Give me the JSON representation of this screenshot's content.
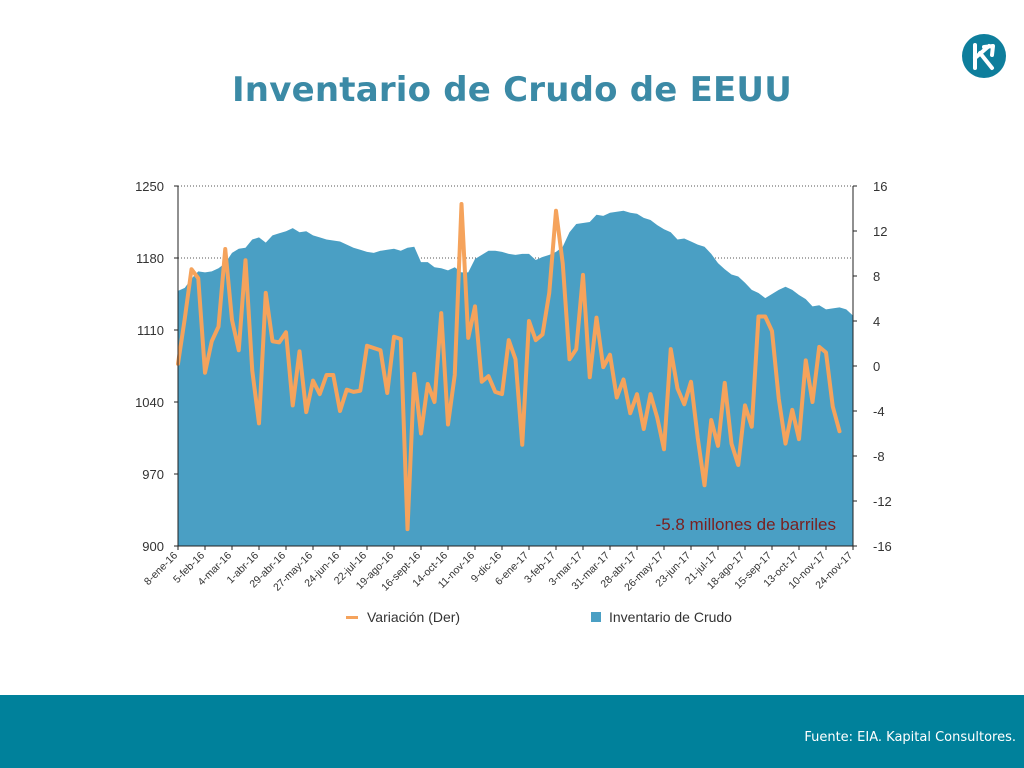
{
  "page": {
    "title": "Inventario de Crudo de EEUU",
    "source": "Fuente: EIA. Kapital Consultores."
  },
  "colors": {
    "area": "#4a9fc4",
    "line": "#f5a35c",
    "title": "#3b8aa6",
    "footer": "#00819b",
    "annotation": "#7a1f1f"
  },
  "chart_data": {
    "type": "area+line",
    "title": "",
    "annotation": "-5.8 millones de barriles",
    "y_left": {
      "min": 900,
      "max": 1250,
      "ticks": [
        "1250",
        "1180",
        "1110",
        "1040",
        "970",
        "900"
      ]
    },
    "y_right": {
      "min": -16,
      "max": 16,
      "ticks": [
        "16",
        "12",
        "8",
        "4",
        "0",
        "-4",
        "-8",
        "-12",
        "-16"
      ]
    },
    "x_tick_labels": [
      "8-ene-16",
      "5-feb-16",
      "4-mar-16",
      "1-abr-16",
      "29-abr-16",
      "27-may-16",
      "24-jun-16",
      "22-jul-16",
      "19-ago-16",
      "16-sept-16",
      "14-oct-16",
      "11-nov-16",
      "9-dic-16",
      "6-ene-17",
      "3-feb-17",
      "3-mar-17",
      "31-mar-17",
      "28-abr-17",
      "26-may-17",
      "23-jun-17",
      "21-jul-17",
      "18-ago-17",
      "15-sep-17",
      "13-oct-17",
      "10-nov-17",
      "24-nov-17"
    ],
    "grid": "dotted at 1250 and 1180",
    "series": [
      {
        "name": "Inventario de Crudo",
        "axis": "left",
        "values": [
          1148,
          1151,
          1160,
          1167,
          1166,
          1167,
          1170,
          1175,
          1185,
          1189,
          1190,
          1198,
          1200,
          1195,
          1202,
          1204,
          1206,
          1209,
          1205,
          1206,
          1202,
          1200,
          1198,
          1197,
          1196,
          1193,
          1190,
          1188,
          1186,
          1185,
          1187,
          1188,
          1189,
          1187,
          1190,
          1191,
          1176,
          1176,
          1171,
          1170,
          1168,
          1171,
          1166,
          1166,
          1179,
          1183,
          1187,
          1187,
          1186,
          1184,
          1183,
          1184,
          1184,
          1178,
          1181,
          1183,
          1186,
          1191,
          1205,
          1213,
          1214,
          1215,
          1222,
          1221,
          1224,
          1225,
          1226,
          1224,
          1223,
          1219,
          1217,
          1212,
          1208,
          1205,
          1198,
          1199,
          1196,
          1193,
          1191,
          1184,
          1175,
          1169,
          1164,
          1162,
          1156,
          1149,
          1146,
          1141,
          1145,
          1149,
          1152,
          1149,
          1144,
          1140,
          1133,
          1134,
          1130,
          1131,
          1132,
          1130,
          1124
        ]
      },
      {
        "name": "Variación (Der)",
        "axis": "right",
        "values": [
          0.2,
          4.2,
          8.6,
          7.8,
          -0.6,
          2.2,
          3.5,
          10.4,
          4.1,
          1.4,
          9.4,
          -0.4,
          -5.1,
          6.5,
          2.2,
          2.1,
          3,
          -3.5,
          1.3,
          -4.1,
          -1.3,
          -2.5,
          -0.8,
          -0.8,
          -4,
          -2.1,
          -2.3,
          -2.2,
          1.8,
          1.6,
          1.4,
          -2.4,
          2.6,
          2.4,
          -14.5,
          -0.7,
          -6,
          -1.6,
          -3.2,
          4.7,
          -5.2,
          -0.8,
          14.4,
          2.5,
          5.3,
          -1.4,
          -0.9,
          -2.3,
          -2.5,
          2.3,
          0.6,
          -7,
          4,
          2.3,
          2.8,
          6.5,
          13.8,
          9.1,
          0.6,
          1.5,
          8.1,
          -1,
          4.3,
          -0.1,
          1,
          -2.8,
          -1.2,
          -4.2,
          -2.5,
          -5.6,
          -2.5,
          -4.6,
          -7.4,
          1.5,
          -2,
          -3.4,
          -1.4,
          -6.4,
          -10.6,
          -4.8,
          -7.1,
          -1.5,
          -6.9,
          -8.8,
          -3.5,
          -5.4,
          4.4,
          4.4,
          3.1,
          -2.9,
          -6.9,
          -3.9,
          -6.5,
          0.5,
          -3.2,
          1.7,
          1.2,
          -3.6,
          -5.8
        ]
      }
    ]
  },
  "legend": {
    "line_label": "Variación (Der)",
    "area_label": "Inventario de Crudo"
  }
}
